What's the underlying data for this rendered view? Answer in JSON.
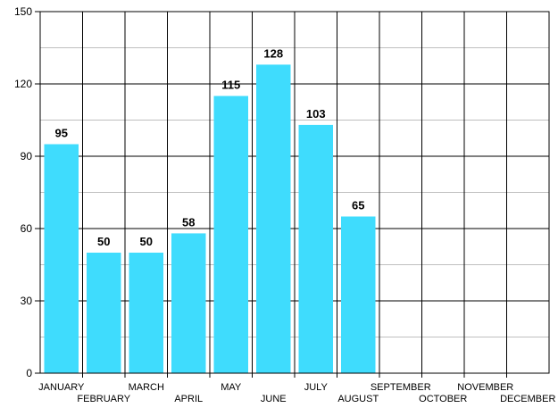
{
  "chart_data": {
    "type": "bar",
    "categories": [
      "JANUARY",
      "FEBRUARY",
      "MARCH",
      "APRIL",
      "MAY",
      "JUNE",
      "JULY",
      "AUGUST",
      "SEPTEMBER",
      "OCTOBER",
      "NOVEMBER",
      "DECEMBER"
    ],
    "values": [
      95,
      50,
      50,
      58,
      115,
      128,
      103,
      65,
      null,
      null,
      null,
      null
    ],
    "data_labels": [
      "95",
      "50",
      "50",
      "58",
      "115",
      "128",
      "103",
      "65",
      "",
      "",
      "",
      ""
    ],
    "yticks": [
      0,
      30,
      60,
      90,
      120,
      150
    ],
    "ylim": [
      0,
      150
    ],
    "grid": true,
    "title": "",
    "xlabel": "",
    "ylabel": "",
    "bar_color": "#3fdcfd",
    "grid_color": "#000000",
    "minor_grid_color": "#bfbfbf"
  }
}
